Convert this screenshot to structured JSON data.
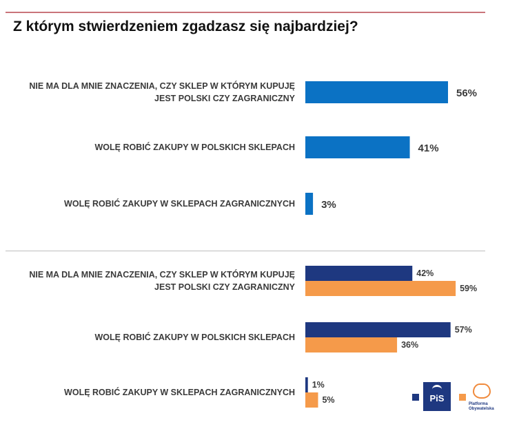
{
  "chart_data": [
    {
      "type": "bar",
      "orientation": "horizontal",
      "title": "Z którym stwierdzeniem zgadzasz się najbardziej?",
      "categories": [
        [
          "NIE MA DLA MNIE ZNACZENIA, CZY SKLEP W KTÓRYM KUPUJĘ",
          "JEST POLSKI CZY ZAGRANICZNY"
        ],
        [
          "WOLĘ ROBIĆ ZAKUPY W POLSKICH SKLEPACH"
        ],
        [
          "WOLĘ ROBIĆ ZAKUPY W SKLEPACH ZAGRANICZNYCH"
        ]
      ],
      "series": [
        {
          "values": [
            56,
            41,
            3
          ],
          "value_labels": [
            "56%",
            "41%",
            "3%"
          ],
          "color": "#0b72c4"
        }
      ],
      "unit": "%",
      "grid": false
    },
    {
      "type": "bar",
      "orientation": "horizontal",
      "categories": [
        [
          "NIE MA DLA MNIE ZNACZENIA, CZY SKLEP W KTÓRYM KUPUJĘ",
          "JEST POLSKI CZY ZAGRANICZNY"
        ],
        [
          "WOLĘ ROBIĆ ZAKUPY W POLSKICH SKLEPACH"
        ],
        [
          "WOLĘ ROBIĆ ZAKUPY W SKLEPACH ZAGRANICZNYCH"
        ]
      ],
      "series": [
        {
          "values": [
            42,
            57,
            1
          ],
          "value_labels": [
            "42%",
            "57%",
            "1%"
          ],
          "color": "#1e3880",
          "legend_icon": "pis-logo"
        },
        {
          "values": [
            59,
            36,
            5
          ],
          "value_labels": [
            "59%",
            "36%",
            "5%"
          ],
          "color": "#f59a4a",
          "legend_icon": "platforma-obywatelska-logo"
        }
      ],
      "unit": "%",
      "legend_position": "bottom-right",
      "grid": false
    }
  ],
  "legend": {
    "pis_logo_text": "PiS",
    "po_logo_text": "Platforma Obywatelska",
    "pis_color": "#1e3880",
    "po_color": "#f59a4a"
  }
}
